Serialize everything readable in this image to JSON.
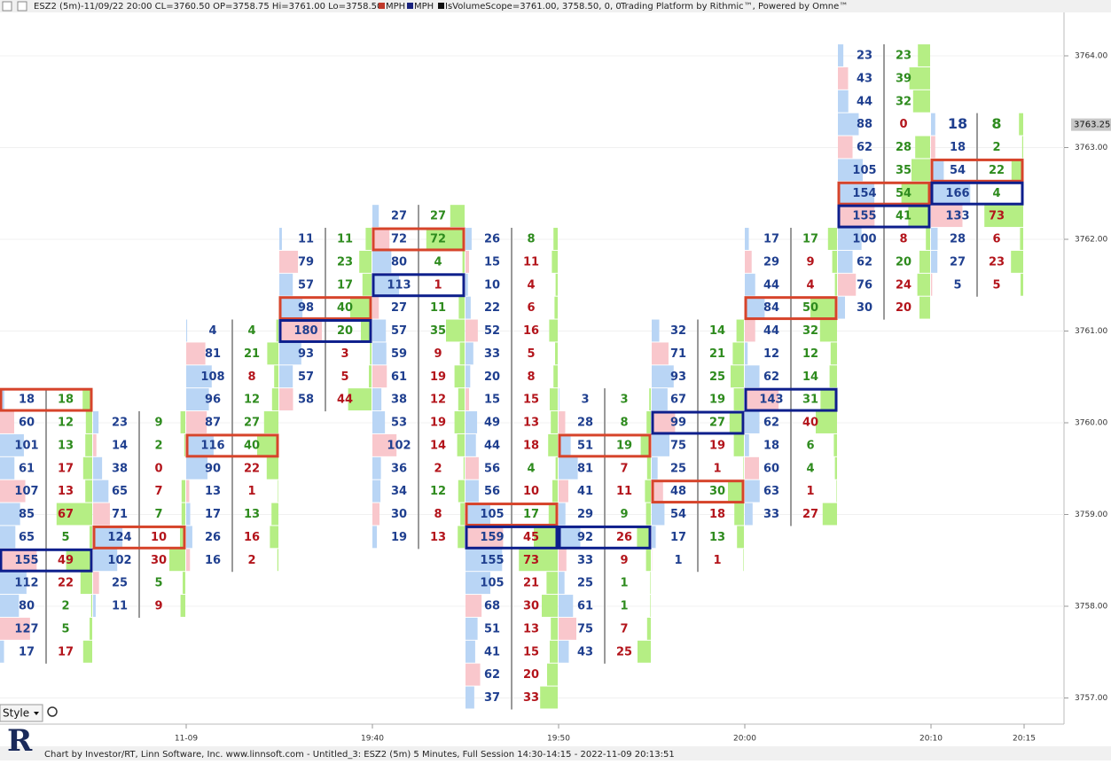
{
  "header": {
    "title": "ESZ2 (5m)-11/09/22 20:00 CL=3760.50 OP=3758.75 Hi=3761.00 Lo=3758.50",
    "legend": [
      "MPH",
      "MPH",
      "IsVolumeScope=3761.00, 3758.50, 0, 0"
    ],
    "platform": "Trading Platform by Rithmic™, Powered by Omne™"
  },
  "price_axis": {
    "ticks": [
      {
        "value": 3764,
        "label": "3764.00"
      },
      {
        "value": 3763,
        "label": "3763.00"
      },
      {
        "value": 3762,
        "label": "3762.00"
      },
      {
        "value": 3761,
        "label": "3761.00"
      },
      {
        "value": 3760,
        "label": "3760.00"
      },
      {
        "value": 3759,
        "label": "3759.00"
      },
      {
        "value": 3758,
        "label": "3758.00"
      },
      {
        "value": 3757,
        "label": "3757.00"
      }
    ],
    "current": {
      "value": 3763.25,
      "label": "3763.25"
    }
  },
  "time_axis": [
    "11-09",
    "19:40",
    "19:50",
    "20:00",
    "20:10",
    "20:15"
  ],
  "colors": {
    "g": "#2e8b1e",
    "r": "#b3141b",
    "bid": "#1f3f8f",
    "box_red": "#d6442b",
    "box_blue": "#0e1f8c"
  },
  "columns": [
    {
      "top_price": 3760.25,
      "red": 0,
      "blue": 7,
      "rows": [
        [
          18,
          18,
          "g"
        ],
        [
          60,
          12,
          "g"
        ],
        [
          101,
          13,
          "g"
        ],
        [
          61,
          17,
          "r"
        ],
        [
          107,
          13,
          "r"
        ],
        [
          85,
          67,
          "r"
        ],
        [
          65,
          5,
          "g"
        ],
        [
          155,
          49,
          "r"
        ],
        [
          112,
          22,
          "r"
        ],
        [
          80,
          2,
          "g"
        ],
        [
          127,
          5,
          "g"
        ],
        [
          17,
          17,
          "r"
        ]
      ]
    },
    {
      "top_price": 3760.0,
      "red": 5,
      "blue": null,
      "rows": [
        [
          23,
          9,
          "g"
        ],
        [
          14,
          2,
          "g"
        ],
        [
          38,
          0,
          "r"
        ],
        [
          65,
          7,
          "r"
        ],
        [
          71,
          7,
          "g"
        ],
        [
          124,
          10,
          "r"
        ],
        [
          102,
          30,
          "r"
        ],
        [
          25,
          5,
          "g"
        ],
        [
          11,
          9,
          "r"
        ]
      ]
    },
    {
      "top_price": 3761.0,
      "red": 5,
      "blue": null,
      "rows": [
        [
          4,
          4,
          "g"
        ],
        [
          81,
          21,
          "g"
        ],
        [
          108,
          8,
          "r"
        ],
        [
          96,
          12,
          "g"
        ],
        [
          87,
          27,
          "g"
        ],
        [
          116,
          40,
          "g"
        ],
        [
          90,
          22,
          "r"
        ],
        [
          13,
          1,
          "r"
        ],
        [
          17,
          13,
          "g"
        ],
        [
          26,
          16,
          "r"
        ],
        [
          16,
          2,
          "r"
        ]
      ]
    },
    {
      "top_price": 3762.0,
      "red": 3,
      "blue": 4,
      "rows": [
        [
          11,
          11,
          "g"
        ],
        [
          79,
          23,
          "g"
        ],
        [
          57,
          17,
          "g"
        ],
        [
          98,
          40,
          "g"
        ],
        [
          180,
          20,
          "g"
        ],
        [
          93,
          3,
          "r"
        ],
        [
          57,
          5,
          "r"
        ],
        [
          58,
          44,
          "r"
        ]
      ]
    },
    {
      "top_price": 3762.25,
      "red": 1,
      "blue": 3,
      "rows": [
        [
          27,
          27,
          "g"
        ],
        [
          72,
          72,
          "g"
        ],
        [
          80,
          4,
          "g"
        ],
        [
          113,
          1,
          "r"
        ],
        [
          27,
          11,
          "g"
        ],
        [
          57,
          35,
          "g"
        ],
        [
          59,
          9,
          "r"
        ],
        [
          61,
          19,
          "r"
        ],
        [
          38,
          12,
          "r"
        ],
        [
          53,
          19,
          "r"
        ],
        [
          102,
          14,
          "r"
        ],
        [
          36,
          2,
          "r"
        ],
        [
          34,
          12,
          "g"
        ],
        [
          30,
          8,
          "r"
        ],
        [
          19,
          13,
          "r"
        ]
      ]
    },
    {
      "top_price": 3762.0,
      "red": 12,
      "blue": 13,
      "rows": [
        [
          26,
          8,
          "g"
        ],
        [
          15,
          11,
          "r"
        ],
        [
          10,
          4,
          "r"
        ],
        [
          22,
          6,
          "r"
        ],
        [
          52,
          16,
          "r"
        ],
        [
          33,
          5,
          "r"
        ],
        [
          20,
          8,
          "r"
        ],
        [
          15,
          15,
          "r"
        ],
        [
          49,
          13,
          "r"
        ],
        [
          44,
          18,
          "r"
        ],
        [
          56,
          4,
          "g"
        ],
        [
          56,
          10,
          "r"
        ],
        [
          105,
          17,
          "g"
        ],
        [
          159,
          45,
          "r"
        ],
        [
          155,
          73,
          "r"
        ],
        [
          105,
          21,
          "r"
        ],
        [
          68,
          30,
          "r"
        ],
        [
          51,
          13,
          "r"
        ],
        [
          41,
          15,
          "r"
        ],
        [
          62,
          20,
          "r"
        ],
        [
          37,
          33,
          "r"
        ]
      ]
    },
    {
      "top_price": 3760.25,
      "red": 2,
      "blue": 6,
      "rows": [
        [
          3,
          3,
          "g"
        ],
        [
          28,
          8,
          "g"
        ],
        [
          51,
          19,
          "g"
        ],
        [
          81,
          7,
          "r"
        ],
        [
          41,
          11,
          "r"
        ],
        [
          29,
          9,
          "g"
        ],
        [
          92,
          26,
          "r"
        ],
        [
          33,
          9,
          "r"
        ],
        [
          25,
          1,
          "g"
        ],
        [
          61,
          1,
          "g"
        ],
        [
          75,
          7,
          "r"
        ],
        [
          43,
          25,
          "r"
        ]
      ]
    },
    {
      "top_price": 3761.0,
      "red": 7,
      "blue": 4,
      "rows": [
        [
          32,
          14,
          "g"
        ],
        [
          71,
          21,
          "g"
        ],
        [
          93,
          25,
          "g"
        ],
        [
          67,
          19,
          "g"
        ],
        [
          99,
          27,
          "g"
        ],
        [
          75,
          19,
          "r"
        ],
        [
          25,
          1,
          "r"
        ],
        [
          48,
          30,
          "g"
        ],
        [
          54,
          18,
          "r"
        ],
        [
          17,
          13,
          "g"
        ],
        [
          1,
          1,
          "r"
        ]
      ]
    },
    {
      "top_price": 3762.0,
      "red": 3,
      "blue": 7,
      "rows": [
        [
          17,
          17,
          "g"
        ],
        [
          29,
          9,
          "r"
        ],
        [
          44,
          4,
          "r"
        ],
        [
          84,
          50,
          "g"
        ],
        [
          44,
          32,
          "g"
        ],
        [
          12,
          12,
          "g"
        ],
        [
          62,
          14,
          "g"
        ],
        [
          143,
          31,
          "g"
        ],
        [
          62,
          40,
          "r"
        ],
        [
          18,
          6,
          "g"
        ],
        [
          60,
          4,
          "g"
        ],
        [
          63,
          1,
          "r"
        ],
        [
          33,
          27,
          "r"
        ]
      ]
    },
    {
      "top_price": 3764.0,
      "red": 6,
      "blue": 7,
      "rows": [
        [
          23,
          23,
          "g"
        ],
        [
          43,
          39,
          "g"
        ],
        [
          44,
          32,
          "g"
        ],
        [
          88,
          0,
          "r"
        ],
        [
          62,
          28,
          "g"
        ],
        [
          105,
          35,
          "g"
        ],
        [
          154,
          54,
          "g"
        ],
        [
          155,
          41,
          "g"
        ],
        [
          100,
          8,
          "r"
        ],
        [
          62,
          20,
          "g"
        ],
        [
          76,
          24,
          "r"
        ],
        [
          30,
          20,
          "r"
        ]
      ]
    },
    {
      "top_price": 3763.25,
      "red": 2,
      "blue": 3,
      "rows": [
        [
          18,
          8,
          "g"
        ],
        [
          18,
          2,
          "g"
        ],
        [
          54,
          22,
          "g"
        ],
        [
          166,
          4,
          "g"
        ],
        [
          133,
          73,
          "r"
        ],
        [
          28,
          6,
          "r"
        ],
        [
          27,
          23,
          "r"
        ],
        [
          5,
          5,
          "r"
        ]
      ]
    }
  ],
  "controls": {
    "style": "Style"
  },
  "footer": "Chart by Investor/RT, Linn Software, Inc. www.linnsoft.com - Untitled_3: ESZ2 (5m) 5 Minutes, Full Session 14:30-14:15 - 2022-11-09 20:13:51"
}
